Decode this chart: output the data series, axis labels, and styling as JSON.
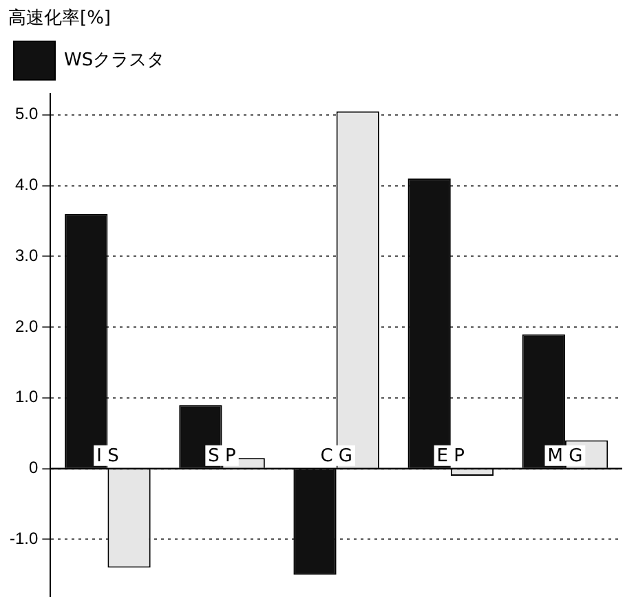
{
  "chart_data": {
    "type": "bar",
    "ylabel": "高速化率[%]",
    "categories": [
      "I S",
      "S P",
      "C G",
      "E P",
      "M G"
    ],
    "series": [
      {
        "name": "WSクラスタ",
        "color": "#111111",
        "values": [
          3.6,
          0.9,
          -1.5,
          4.1,
          1.9
        ]
      },
      {
        "color": "#e6e6e6",
        "values": [
          -1.4,
          0.15,
          5.05,
          -0.1,
          0.4
        ]
      }
    ],
    "ylim": [
      -1.8,
      5.3
    ],
    "yticks": [
      {
        "value": -1,
        "label": "-1.0"
      },
      0,
      {
        "value": 1,
        "label": "1.0"
      },
      {
        "value": 2,
        "label": "2.0"
      },
      {
        "value": 3,
        "label": "3.0"
      },
      {
        "value": 4,
        "label": "4.0"
      },
      {
        "value": 5,
        "label": "5.0"
      }
    ],
    "grid": "y",
    "legend": "top left"
  }
}
